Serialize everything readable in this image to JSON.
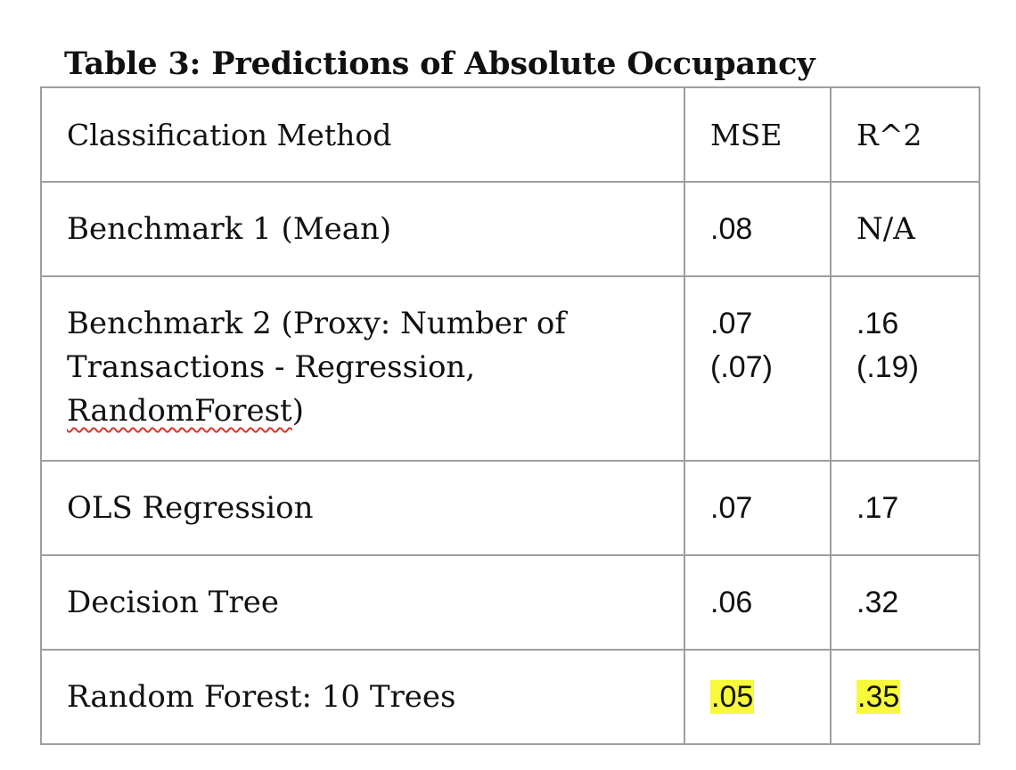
{
  "caption": "Table 3: Predictions of Absolute Occupancy",
  "header": {
    "method": "Classification Method",
    "mse": "MSE",
    "r2": "R^2"
  },
  "rows": [
    {
      "method": "Benchmark 1 (Mean)",
      "mse": ".08",
      "r2": "N/A"
    },
    {
      "method_line1": "Benchmark 2 (Proxy: Number of",
      "method_line2": "Transactions - Regression,",
      "method_line3_word": "RandomForest",
      "method_line3_tail": ")",
      "mse": ".07",
      "mse_alt": "(.07)",
      "r2": ".16",
      "r2_alt": "(.19)"
    },
    {
      "method": "OLS Regression",
      "mse": ".07",
      "r2": ".17"
    },
    {
      "method": "Decision Tree",
      "mse": ".06",
      "r2": ".32"
    },
    {
      "method": "Random Forest: 10 Trees",
      "mse": ".05",
      "r2": ".35"
    }
  ],
  "colors": {
    "highlight": "#f7f93a",
    "border": "#9e9e9e",
    "spellcheck_underline": "#d9342b"
  }
}
